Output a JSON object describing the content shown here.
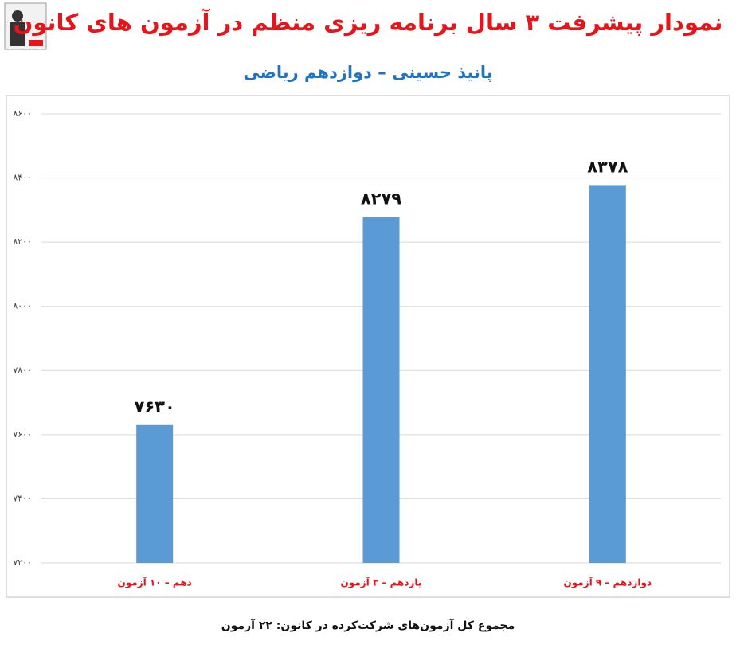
{
  "chart_data": {
    "type": "bar",
    "title": "نمودار پیشرفت ۳ سال برنامه ریزی منظم در آزمون های کانون",
    "subtitle": "پانیذ حسینی – دوازدهم ریاضی",
    "footer": "مجموع کل آزمون‌های شرکت‌کرده در کانون:  ۲۲ آزمون",
    "categories": [
      "دهم – ۱۰ آزمون",
      "یازدهم – ۳ آزمون",
      "دوازدهم – ۹ آزمون"
    ],
    "values": [
      7630,
      8279,
      8378
    ],
    "value_labels": [
      "۷۶۳۰",
      "۸۲۷۹",
      "۸۳۷۸"
    ],
    "color": "#5b9bd5",
    "ylim": [
      7200,
      8600
    ],
    "yticks": [
      {
        "value": 7200,
        "label": "۷۲۰۰"
      },
      {
        "value": 7400,
        "label": "۷۴۰۰"
      },
      {
        "value": 7600,
        "label": "۷۶۰۰"
      },
      {
        "value": 7800,
        "label": "۷۸۰۰"
      },
      {
        "value": 8000,
        "label": "۸۰۰۰"
      },
      {
        "value": 8200,
        "label": "۸۲۰۰"
      },
      {
        "value": 8400,
        "label": "۸۴۰۰"
      },
      {
        "value": 8600,
        "label": "۸۶۰۰"
      }
    ],
    "grid": true
  }
}
